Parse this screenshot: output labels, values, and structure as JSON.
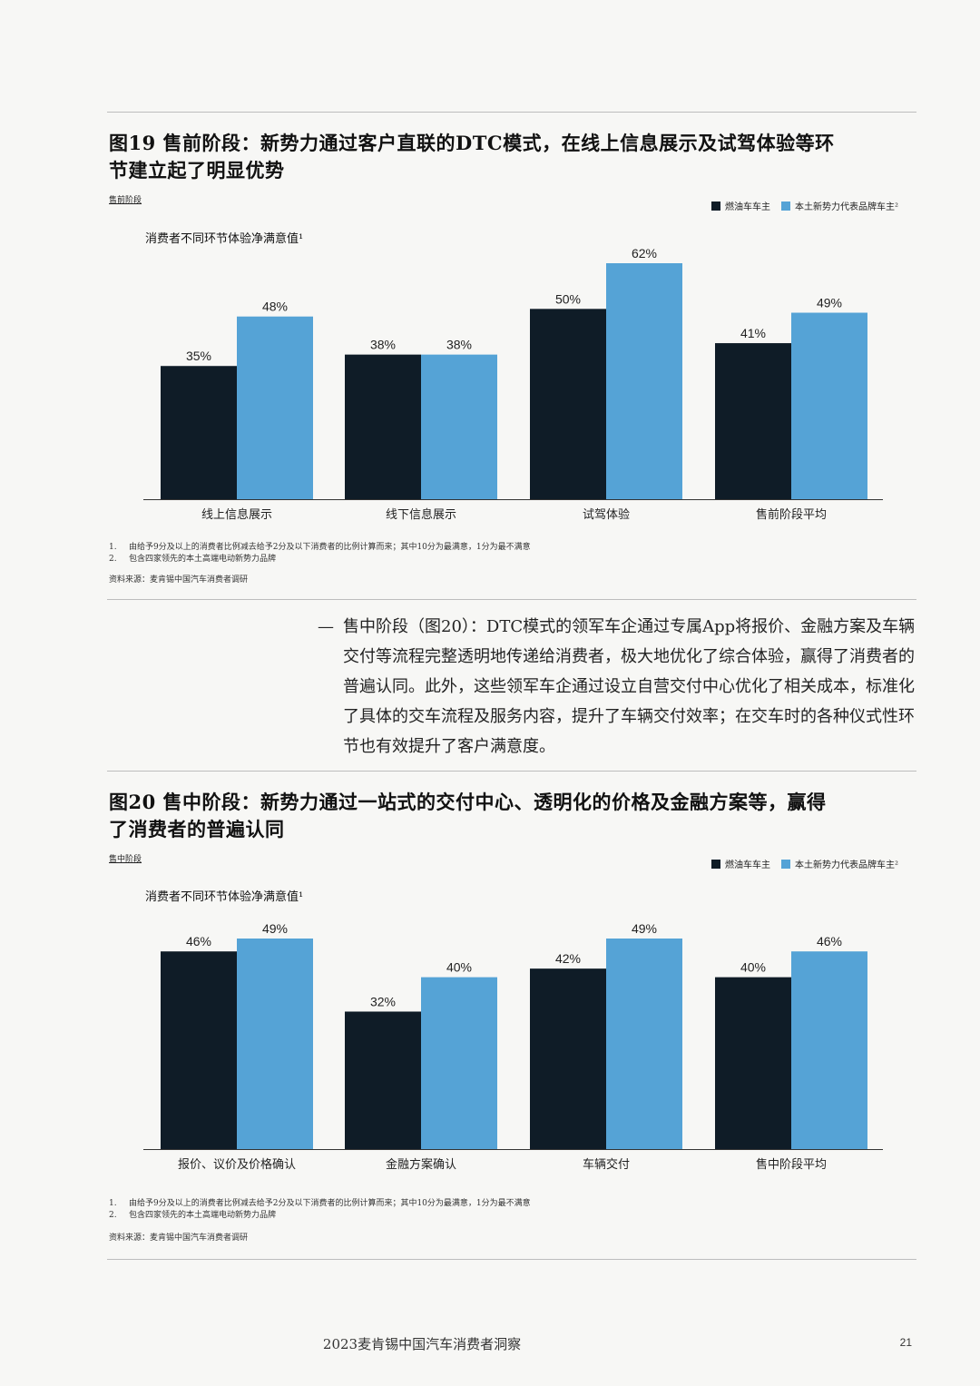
{
  "colors": {
    "ice": "#0f1c27",
    "ev": "#55a3d6"
  },
  "fig19": {
    "title_line1": "图19 售前阶段：新势力通过客户直联的DTC模式，在线上信息展示及试驾体验等环",
    "title_line2": "节建立起了明显优势",
    "stage": "售前阶段",
    "legend_ice": "燃油车车主",
    "legend_ev": "本土新势力代表品牌车主²",
    "subtitle": "消费者不同环节体验净满意值¹",
    "note1_num": "1.",
    "note1": "由给予9分及以上的消费者比例减去给予2分及以下消费者的比例计算而来；其中10分为最满意，1分为最不满意",
    "note2_num": "2.",
    "note2": "包含四家领先的本土高端电动新势力品牌",
    "source": "资料来源：麦肯锡中国汽车消费者调研"
  },
  "paragraph": {
    "dash": "—",
    "text": "售中阶段（图20）：DTC模式的领军车企通过专属App将报价、金融方案及车辆交付等流程完整透明地传递给消费者，极大地优化了综合体验，赢得了消费者的普遍认同。此外，这些领军车企通过设立自营交付中心优化了相关成本，标准化了具体的交车流程及服务内容，提升了车辆交付效率；在交车时的各种仪式性环节也有效提升了客户满意度。"
  },
  "fig20": {
    "title_line1": "图20 售中阶段：新势力通过一站式的交付中心、透明化的价格及金融方案等，赢得",
    "title_line2": "了消费者的普遍认同",
    "stage": "售中阶段",
    "legend_ice": "燃油车车主",
    "legend_ev": "本土新势力代表品牌车主²",
    "subtitle": "消费者不同环节体验净满意值¹",
    "note1_num": "1.",
    "note1": "由给予9分及以上的消费者比例减去给予2分及以下消费者的比例计算而来；其中10分为最满意，1分为最不满意",
    "note2_num": "2.",
    "note2": "包含四家领先的本土高端电动新势力品牌",
    "source": "资料来源：麦肯锡中国汽车消费者调研"
  },
  "footer": {
    "title": "2023麦肯锡中国汽车消费者洞察",
    "page": "21"
  },
  "chart_data": [
    {
      "type": "bar",
      "title": "图19 售前阶段：新势力通过客户直联的DTC模式，在线上信息展示及试驾体验等环节建立起了明显优势",
      "subtitle": "消费者不同环节体验净满意值¹",
      "categories": [
        "线上信息展示",
        "线下信息展示",
        "试驾体验",
        "售前阶段平均"
      ],
      "series": [
        {
          "name": "燃油车车主",
          "values": [
            35,
            38,
            50,
            41
          ],
          "labels": [
            "35%",
            "38%",
            "50%",
            "41%"
          ]
        },
        {
          "name": "本土新势力代表品牌车主²",
          "values": [
            48,
            38,
            62,
            49
          ],
          "labels": [
            "48%",
            "38%",
            "62%",
            "49%"
          ]
        }
      ],
      "ylim": [
        0,
        62
      ],
      "legend": "top-right",
      "grid": false
    },
    {
      "type": "bar",
      "title": "图20 售中阶段：新势力通过一站式的交付中心、透明化的价格及金融方案等，赢得了消费者的普遍认同",
      "subtitle": "消费者不同环节体验净满意值¹",
      "categories": [
        "报价、议价及价格确认",
        "金融方案确认",
        "车辆交付",
        "售中阶段平均"
      ],
      "series": [
        {
          "name": "燃油车车主",
          "values": [
            46,
            32,
            42,
            40
          ],
          "labels": [
            "46%",
            "32%",
            "42%",
            "40%"
          ]
        },
        {
          "name": "本土新势力代表品牌车主²",
          "values": [
            49,
            40,
            49,
            46
          ],
          "labels": [
            "49%",
            "40%",
            "49%",
            "46%"
          ]
        }
      ],
      "ylim": [
        0,
        49
      ],
      "legend": "top-right",
      "grid": false
    }
  ]
}
